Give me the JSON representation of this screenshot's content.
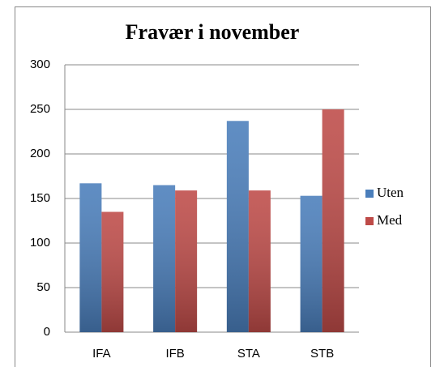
{
  "chart_data": {
    "type": "bar",
    "title": "Fravær i november",
    "categories": [
      "IFA",
      "IFB",
      "STA",
      "STB"
    ],
    "series": [
      {
        "name": "Uten",
        "color": "#4a7ebb",
        "values": [
          167,
          165,
          237,
          153
        ]
      },
      {
        "name": "Med",
        "color": "#be4b48",
        "values": [
          135,
          159,
          159,
          250
        ]
      }
    ],
    "ylim": [
      0,
      300
    ],
    "yticks": [
      0,
      50,
      100,
      150,
      200,
      250,
      300
    ],
    "grid": true,
    "legend": "right"
  }
}
